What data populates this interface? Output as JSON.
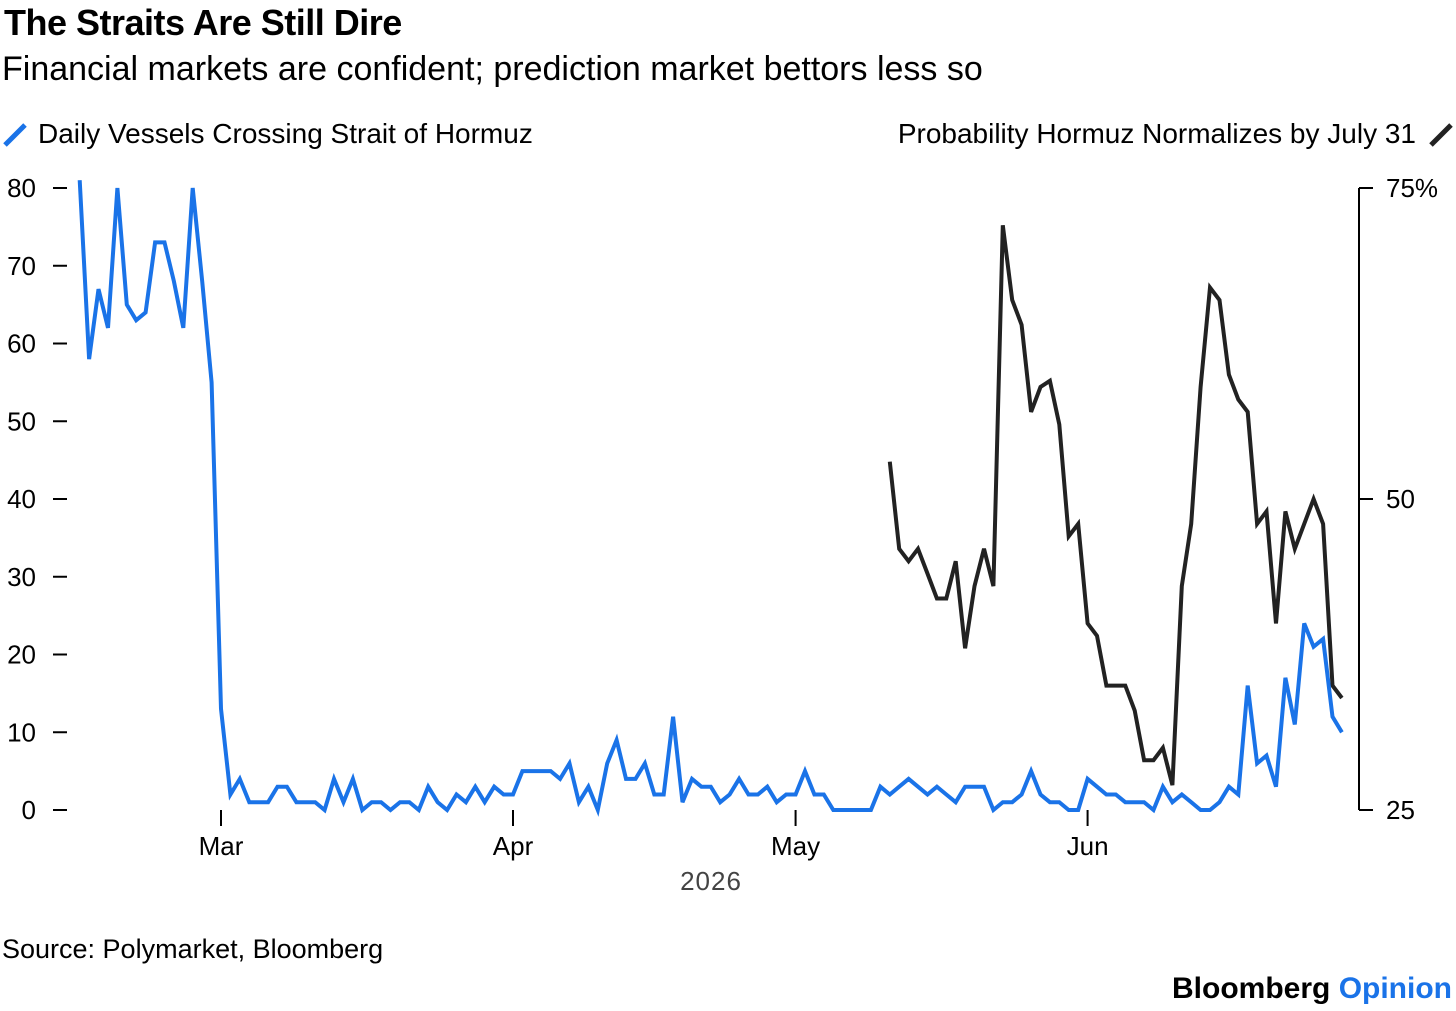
{
  "header": {
    "title": "The Straits Are Still Dire",
    "subtitle": "Financial markets are confident; prediction market bettors less so"
  },
  "colors": {
    "vessels": "#1a73e8",
    "probability": "#222222"
  },
  "footer": {
    "source": "Source: Polymarket, Bloomberg",
    "brand_main": "Bloomberg",
    "brand_accent": "Opinion"
  },
  "chart_data": {
    "type": "line",
    "title": "The Straits Are Still Dire",
    "subtitle": "Financial markets are confident; prediction market bettors less so",
    "x_axis": {
      "ticks": [
        {
          "label": "Mar",
          "date": "2026-03-01"
        },
        {
          "label": "Apr",
          "date": "2026-04-01"
        },
        {
          "label": "May",
          "date": "2026-05-01"
        },
        {
          "label": "Jun",
          "date": "2026-06-01"
        }
      ],
      "year_label": "2026"
    },
    "y_axis_left": {
      "min": 0,
      "max": 80,
      "ticks": [
        "0",
        "10",
        "20",
        "30",
        "40",
        "50",
        "60",
        "70",
        "80"
      ]
    },
    "y_axis_right": {
      "min": 25,
      "max": 75,
      "ticks": [
        "25",
        "50",
        "75%"
      ]
    },
    "grid": false,
    "legend_placement": "top",
    "series": [
      {
        "name": "Daily Vessels Crossing Strait of Hormuz",
        "axis": "left",
        "x_start": "2026-02-14",
        "x_step_days": 1,
        "values": [
          81,
          58,
          67,
          62,
          80,
          65,
          63,
          64,
          73,
          73,
          68,
          62,
          80,
          68,
          55,
          13,
          2,
          4,
          1,
          1,
          1,
          3,
          3,
          1,
          1,
          1,
          0,
          4,
          1,
          4,
          0,
          1,
          1,
          0,
          1,
          1,
          0,
          3,
          1,
          0,
          2,
          1,
          3,
          1,
          3,
          2,
          2,
          5,
          5,
          5,
          5,
          4,
          6,
          1,
          3,
          0,
          6,
          9,
          4,
          4,
          6,
          2,
          2,
          12,
          1,
          4,
          3,
          3,
          1,
          2,
          4,
          2,
          2,
          3,
          1,
          2,
          2,
          5,
          2,
          2,
          0,
          0,
          0,
          0,
          0,
          3,
          2,
          3,
          4,
          3,
          2,
          3,
          2,
          1,
          3,
          3,
          3,
          0,
          1,
          1,
          2,
          5,
          2,
          1,
          1,
          0,
          0,
          4,
          3,
          2,
          2,
          1,
          1,
          1,
          0,
          3,
          1,
          2,
          1,
          0,
          0,
          1,
          3,
          2,
          16,
          6,
          7,
          3,
          17,
          11,
          24,
          21,
          22,
          12,
          10
        ]
      },
      {
        "name": "Probability Hormuz Normalizes by July 31",
        "axis": "right",
        "x_start": "2026-05-11",
        "x_step_days": 1,
        "values": [
          53,
          46,
          45,
          46,
          44,
          42,
          42,
          45,
          38,
          43,
          46,
          43,
          72,
          66,
          64,
          57,
          59,
          59.5,
          56,
          47,
          48,
          40,
          39,
          35,
          35,
          35,
          33,
          29,
          29,
          30,
          27,
          43,
          48,
          59,
          67,
          66,
          60,
          58,
          57,
          48,
          49,
          40,
          49,
          46,
          48,
          50,
          48,
          35,
          34
        ]
      }
    ]
  }
}
